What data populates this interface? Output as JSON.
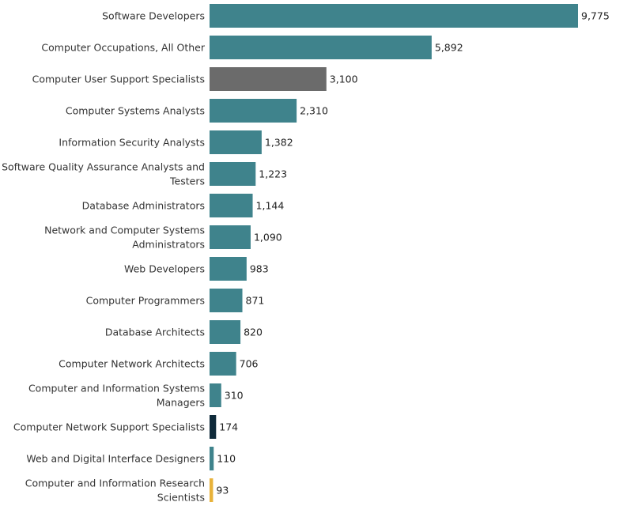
{
  "chart_data": {
    "type": "bar",
    "orientation": "horizontal",
    "title": "",
    "xlabel": "",
    "ylabel": "",
    "grid": false,
    "xlim": [
      0,
      9775
    ],
    "categories": [
      [
        "Software Developers"
      ],
      [
        "Computer Occupations, All Other"
      ],
      [
        "Computer User Support Specialists"
      ],
      [
        "Computer Systems Analysts"
      ],
      [
        "Information Security Analysts"
      ],
      [
        "Software Quality Assurance Analysts and",
        "Testers"
      ],
      [
        "Database Administrators"
      ],
      [
        "Network and Computer Systems",
        "Administrators"
      ],
      [
        "Web Developers"
      ],
      [
        "Computer Programmers"
      ],
      [
        "Database Architects"
      ],
      [
        "Computer Network Architects"
      ],
      [
        "Computer and Information Systems",
        "Managers"
      ],
      [
        "Computer Network Support Specialists"
      ],
      [
        "Web and Digital Interface Designers"
      ],
      [
        "Computer and Information Research",
        "Scientists"
      ]
    ],
    "values": [
      9775,
      5892,
      3100,
      2310,
      1382,
      1223,
      1144,
      1090,
      983,
      871,
      820,
      706,
      310,
      174,
      110,
      93
    ],
    "value_labels": [
      "9,775",
      "5,892",
      "3,100",
      "2,310",
      "1,382",
      "1,223",
      "1,144",
      "1,090",
      "983",
      "871",
      "820",
      "706",
      "310",
      "174",
      "110",
      "93"
    ],
    "colors": [
      "#3f838c",
      "#3f838c",
      "#6b6b6b",
      "#3f838c",
      "#3f838c",
      "#3f838c",
      "#3f838c",
      "#3f838c",
      "#3f838c",
      "#3f838c",
      "#3f838c",
      "#3f838c",
      "#3f838c",
      "#0f2a3a",
      "#3f838c",
      "#e8b23a"
    ]
  }
}
